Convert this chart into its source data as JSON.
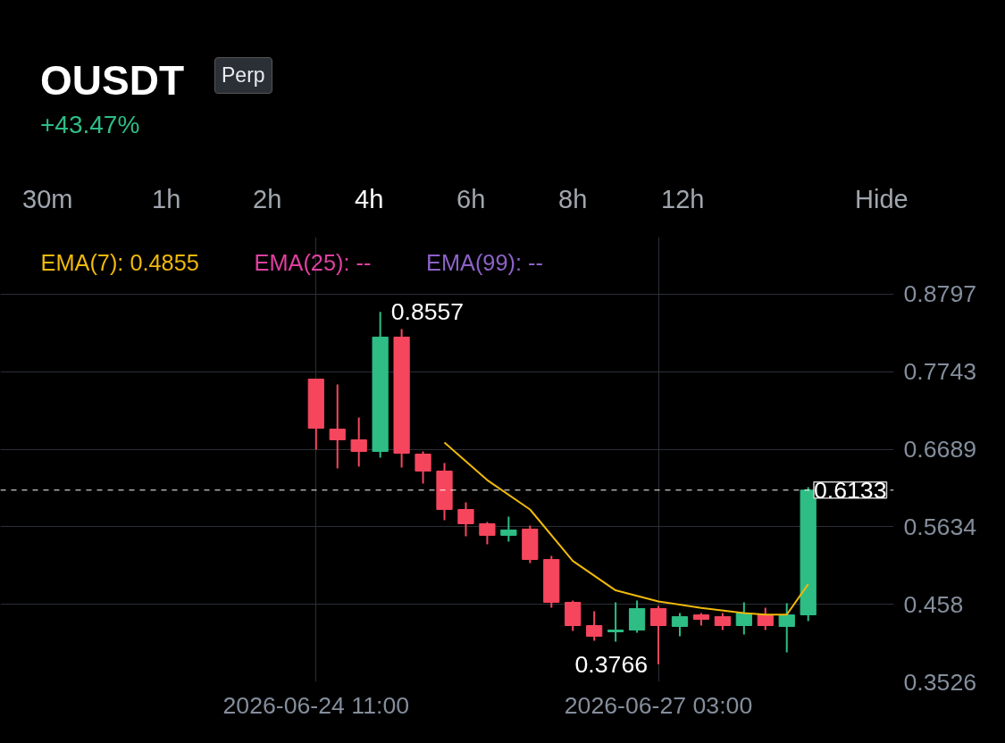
{
  "chart_data": {
    "type": "candlestick",
    "title": "OUSDT",
    "subtitle": "+43.47%",
    "annotations": [
      "Perp",
      "30m",
      "1h",
      "2h",
      "4h",
      "6h",
      "8h",
      "12h",
      "Hide",
      {
        "text": "0.8557",
        "x": "2026-06-24T23:00",
        "y": 0.8557
      },
      {
        "text": "0.3766",
        "x": "2026-06-27T03:00",
        "y": 0.3766
      }
    ],
    "x": [
      "2026-06-24T11:00",
      "2026-06-24T15:00",
      "2026-06-24T19:00",
      "2026-06-24T23:00",
      "2026-06-25T03:00",
      "2026-06-25T07:00",
      "2026-06-25T11:00",
      "2026-06-25T15:00",
      "2026-06-25T19:00",
      "2026-06-25T23:00",
      "2026-06-26T03:00",
      "2026-06-26T07:00",
      "2026-06-26T11:00",
      "2026-06-26T15:00",
      "2026-06-26T19:00",
      "2026-06-26T23:00",
      "2026-06-27T03:00",
      "2026-06-27T07:00",
      "2026-06-27T11:00",
      "2026-06-27T15:00",
      "2026-06-27T19:00",
      "2026-06-27T23:00",
      "2026-06-28T03:00",
      "2026-06-28T07:00"
    ],
    "ohlc": [
      [
        0.7643,
        0.7643,
        0.6684,
        0.6975
      ],
      [
        0.6963,
        0.757,
        0.6429,
        0.6817
      ],
      [
        0.6817,
        0.7121,
        0.6453,
        0.6659
      ],
      [
        0.6659,
        0.8557,
        0.6574,
        0.8214
      ],
      [
        0.8214,
        0.8323,
        0.6441,
        0.6635
      ],
      [
        0.6623,
        0.6659,
        0.6222,
        0.6392
      ],
      [
        0.6392,
        0.6502,
        0.5724,
        0.587
      ],
      [
        0.587,
        0.5967,
        0.5506,
        0.5676
      ],
      [
        0.5676,
        0.57,
        0.5396,
        0.5518
      ],
      [
        0.5518,
        0.5773,
        0.5433,
        0.5591
      ],
      [
        0.5603,
        0.5651,
        0.5141,
        0.519
      ],
      [
        0.519,
        0.5238,
        0.4534,
        0.4607
      ],
      [
        0.4607,
        0.4631,
        0.4218,
        0.4291
      ],
      [
        0.4291,
        0.4485,
        0.4085,
        0.4145
      ],
      [
        0.4206,
        0.4607,
        0.4073,
        0.423
      ],
      [
        0.423,
        0.4631,
        0.4194,
        0.4522
      ],
      [
        0.4522,
        0.4558,
        0.3766,
        0.4291
      ],
      [
        0.4279,
        0.4461,
        0.4145,
        0.4413
      ],
      [
        0.4437,
        0.4461,
        0.4291,
        0.4376
      ],
      [
        0.4413,
        0.4461,
        0.423,
        0.4291
      ],
      [
        0.4291,
        0.4607,
        0.417,
        0.4461
      ],
      [
        0.4437,
        0.4534,
        0.423,
        0.4291
      ],
      [
        0.4279,
        0.4595,
        0.3927,
        0.4437
      ],
      [
        0.4437,
        0.6173,
        0.4352,
        0.6133
      ]
    ],
    "colors": [
      "#f6465d",
      "#f6465d",
      "#f6465d",
      "#2ebd85",
      "#f6465d",
      "#f6465d",
      "#f6465d",
      "#f6465d",
      "#f6465d",
      "#2ebd85",
      "#f6465d",
      "#f6465d",
      "#f6465d",
      "#f6465d",
      "#2ebd85",
      "#2ebd85",
      "#f6465d",
      "#2ebd85",
      "#f6465d",
      "#f6465d",
      "#2ebd85",
      "#f6465d",
      "#2ebd85",
      "#2ebd85"
    ],
    "series": [
      {
        "name": "EMA(7): 0.4855",
        "type": "line",
        "color": "#f0b90b",
        "x": [
          "2026-06-25T11:00",
          "2026-06-25T19:00",
          "2026-06-26T03:00",
          "2026-06-26T11:00",
          "2026-06-26T19:00",
          "2026-06-27T03:00",
          "2026-06-27T11:00",
          "2026-06-27T19:00",
          "2026-06-27T23:00",
          "2026-06-28T03:00",
          "2026-06-28T07:00"
        ],
        "values": [
          0.678,
          0.627,
          0.587,
          0.517,
          0.477,
          0.462,
          0.453,
          0.446,
          0.444,
          0.444,
          0.4855
        ]
      },
      {
        "name": "EMA(25): --",
        "type": "line",
        "color": "#e040a0",
        "values": [
          null,
          null,
          null,
          null,
          null,
          null,
          null,
          null,
          null,
          null,
          null,
          null,
          null,
          null,
          null,
          null,
          null,
          null,
          null,
          null,
          null,
          null,
          null,
          null
        ]
      },
      {
        "name": "EMA(99): --",
        "type": "line",
        "color": "#8c62c8",
        "values": [
          null,
          null,
          null,
          null,
          null,
          null,
          null,
          null,
          null,
          null,
          null,
          null,
          null,
          null,
          null,
          null,
          null,
          null,
          null,
          null,
          null,
          null,
          null,
          null
        ]
      }
    ],
    "ref_lines": [
      {
        "axis": "y",
        "value": 0.6133,
        "label": "0.6133",
        "color": "#ffffff",
        "line_style": "dashed"
      }
    ],
    "xlim": [
      "2026-06-22T00:00",
      "2026-06-28T23:00"
    ],
    "xticks": [
      {
        "value": "2026-06-24T11:00",
        "label": "2026-06-24 11:00"
      },
      {
        "value": "2026-06-27T03:00",
        "label": "2026-06-27 03:00"
      }
    ],
    "ylim": [
      0.3526,
      0.9574
    ],
    "yticks": [
      0.3526,
      0.458,
      0.5634,
      0.6689,
      0.7743,
      0.8797
    ],
    "grid": true,
    "legend": "top left"
  }
}
